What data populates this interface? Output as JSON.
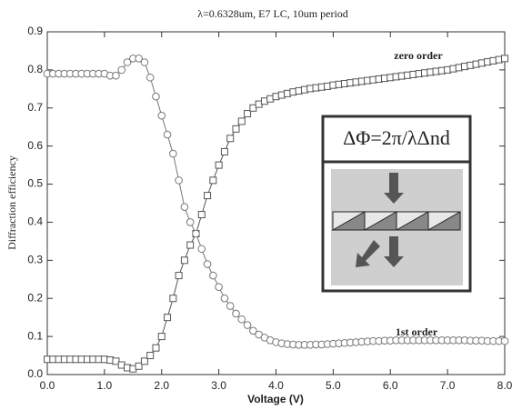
{
  "chart_data": {
    "type": "line",
    "title": "λ=0.6328um,  E7 LC, 10um period",
    "x_label": "Voltage (V)",
    "y_label": "Diffraction efficiency",
    "inset_formula": "ΔΦ=2π/λΔnd",
    "x": [
      0,
      0.1,
      0.2,
      0.3,
      0.4,
      0.5,
      0.6,
      0.7,
      0.8,
      0.9,
      1,
      1.1,
      1.2,
      1.3,
      1.4,
      1.5,
      1.6,
      1.7,
      1.8,
      1.9,
      2,
      2.1,
      2.2,
      2.3,
      2.4,
      2.5,
      2.6,
      2.7,
      2.8,
      2.9,
      3,
      3.1,
      3.2,
      3.3,
      3.4,
      3.5,
      3.6,
      3.7,
      3.8,
      3.9,
      4,
      4.1,
      4.2,
      4.3,
      4.4,
      4.5,
      4.6,
      4.7,
      4.8,
      4.9,
      5,
      5.1,
      5.2,
      5.3,
      5.4,
      5.5,
      5.6,
      5.7,
      5.8,
      5.9,
      6,
      6.1,
      6.2,
      6.3,
      6.4,
      6.5,
      6.6,
      6.7,
      6.8,
      6.9,
      7,
      7.1,
      7.2,
      7.3,
      7.4,
      7.5,
      7.6,
      7.7,
      7.8,
      7.9,
      8
    ],
    "series": [
      {
        "name": "zero order",
        "marker": "square",
        "color": "#555555",
        "values": [
          0.04,
          0.04,
          0.04,
          0.04,
          0.04,
          0.04,
          0.04,
          0.04,
          0.04,
          0.04,
          0.04,
          0.038,
          0.035,
          0.025,
          0.018,
          0.015,
          0.022,
          0.035,
          0.05,
          0.07,
          0.1,
          0.15,
          0.2,
          0.26,
          0.3,
          0.34,
          0.37,
          0.42,
          0.47,
          0.51,
          0.55,
          0.585,
          0.62,
          0.645,
          0.665,
          0.685,
          0.7,
          0.71,
          0.718,
          0.724,
          0.73,
          0.734,
          0.738,
          0.742,
          0.745,
          0.748,
          0.751,
          0.753,
          0.755,
          0.757,
          0.76,
          0.762,
          0.764,
          0.766,
          0.768,
          0.77,
          0.772,
          0.774,
          0.776,
          0.778,
          0.78,
          0.782,
          0.784,
          0.786,
          0.788,
          0.79,
          0.792,
          0.794,
          0.796,
          0.798,
          0.8,
          0.803,
          0.806,
          0.809,
          0.812,
          0.815,
          0.818,
          0.821,
          0.824,
          0.827,
          0.83
        ]
      },
      {
        "name": "1st order",
        "marker": "circle",
        "color": "#777777",
        "values": [
          0.79,
          0.79,
          0.79,
          0.79,
          0.79,
          0.79,
          0.79,
          0.79,
          0.79,
          0.79,
          0.79,
          0.785,
          0.785,
          0.8,
          0.82,
          0.83,
          0.83,
          0.82,
          0.78,
          0.73,
          0.68,
          0.63,
          0.58,
          0.51,
          0.44,
          0.4,
          0.37,
          0.33,
          0.29,
          0.26,
          0.23,
          0.2,
          0.18,
          0.16,
          0.145,
          0.13,
          0.115,
          0.105,
          0.097,
          0.09,
          0.085,
          0.082,
          0.08,
          0.079,
          0.078,
          0.078,
          0.078,
          0.079,
          0.079,
          0.08,
          0.081,
          0.082,
          0.083,
          0.084,
          0.085,
          0.086,
          0.087,
          0.088,
          0.088,
          0.089,
          0.089,
          0.09,
          0.09,
          0.09,
          0.09,
          0.09,
          0.09,
          0.09,
          0.09,
          0.09,
          0.09,
          0.09,
          0.09,
          0.09,
          0.089,
          0.089,
          0.089,
          0.088,
          0.088,
          0.088,
          0.088
        ]
      }
    ],
    "xlim": [
      0,
      8
    ],
    "ylim": [
      0,
      0.9
    ],
    "xticks": [
      {
        "value": 0,
        "label": "0.0"
      },
      {
        "value": 1,
        "label": "1.0"
      },
      {
        "value": 2,
        "label": "2.0"
      },
      {
        "value": 3,
        "label": "3.0"
      },
      {
        "value": 4,
        "label": "4.0"
      },
      {
        "value": 5,
        "label": "5.0"
      },
      {
        "value": 6,
        "label": "6.0"
      },
      {
        "value": 7,
        "label": "7.0"
      },
      {
        "value": 8,
        "label": "8.0"
      }
    ],
    "yticks": [
      {
        "value": 0,
        "label": "0.0"
      },
      0.1,
      0.2,
      0.3,
      0.4,
      0.5,
      0.6,
      0.7,
      0.8,
      0.9
    ],
    "grid": false
  }
}
